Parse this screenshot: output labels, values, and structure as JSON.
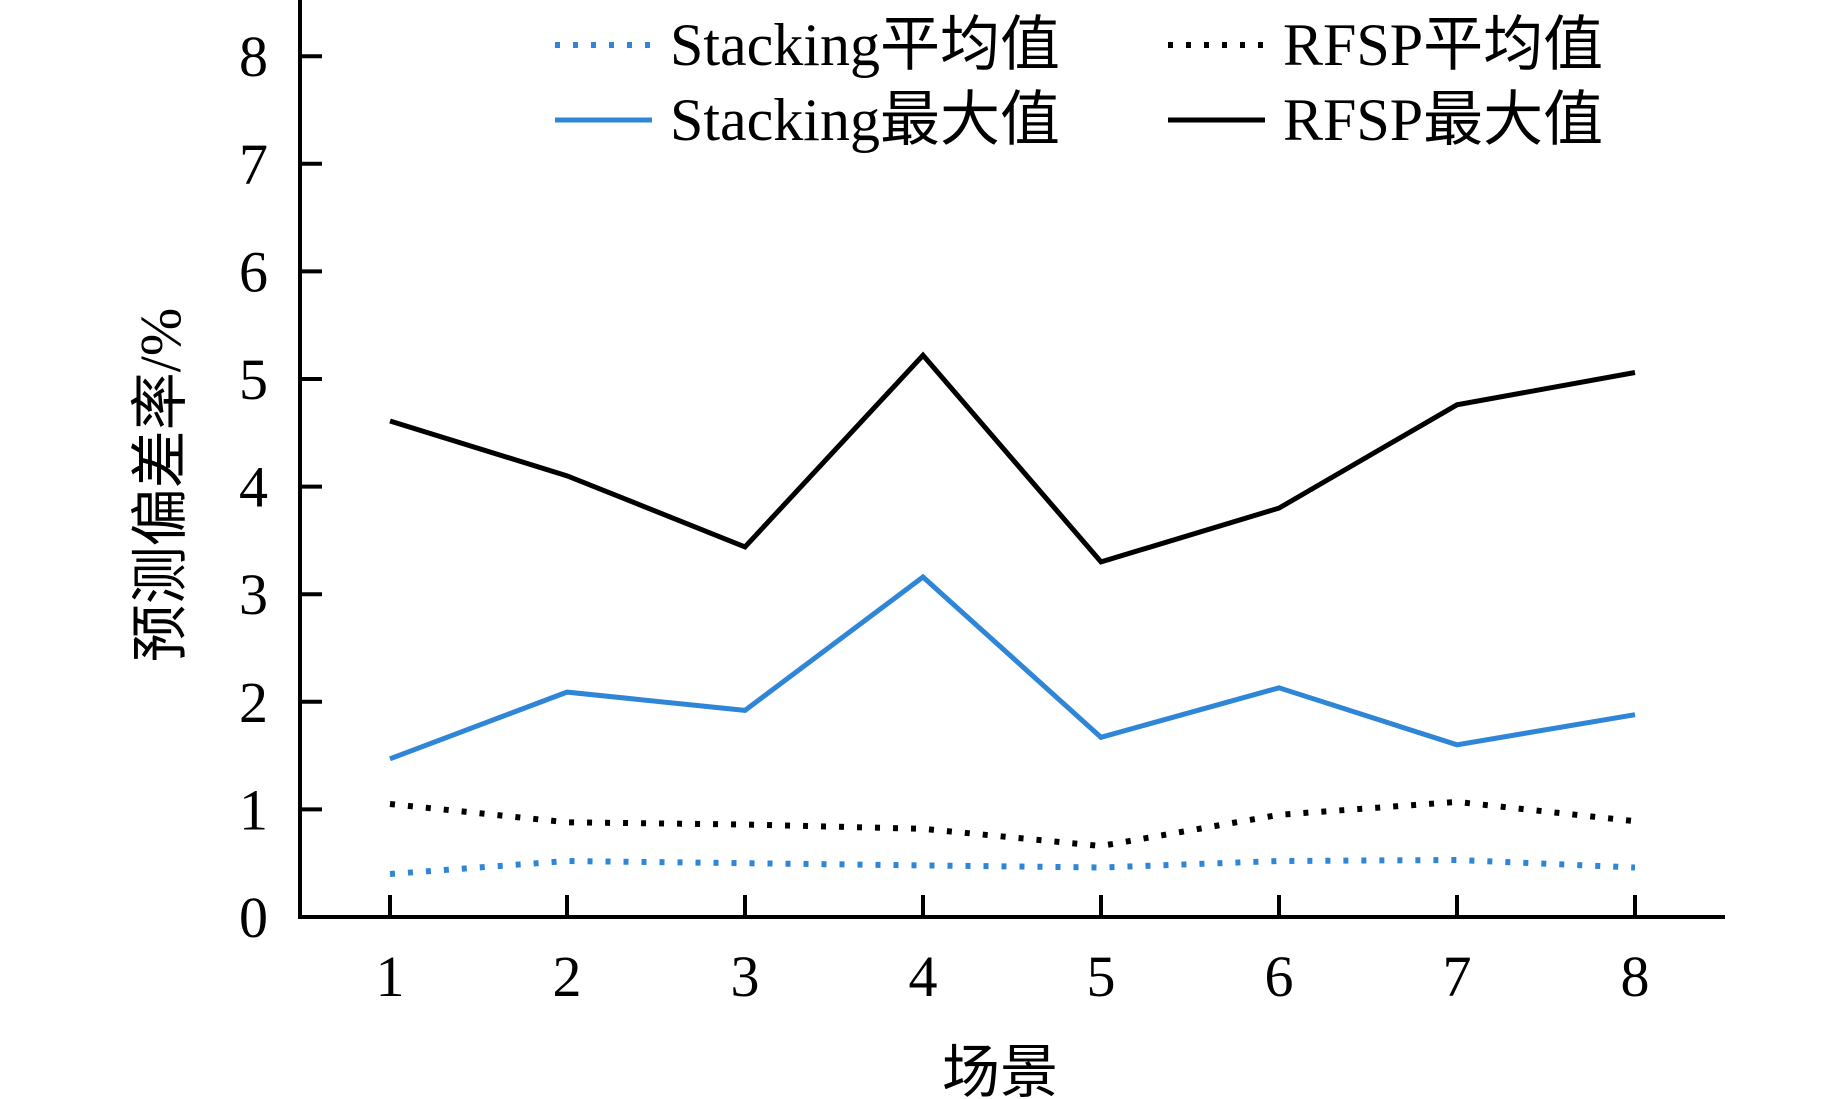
{
  "chart_data": {
    "type": "line",
    "title": "",
    "xlabel": "场景",
    "ylabel": "预测偏差率/%",
    "x": [
      "1",
      "2",
      "3",
      "4",
      "5",
      "6",
      "7",
      "8"
    ],
    "yticks": [
      "0",
      "1",
      "2",
      "3",
      "4",
      "5",
      "6",
      "7",
      "8"
    ],
    "ylim": [
      0,
      8.3
    ],
    "grid": false,
    "legend_position": "top-right",
    "series": [
      {
        "name": "Stacking平均值",
        "color": "#2f86d6",
        "style": "dotted",
        "values": [
          0.4,
          0.52,
          0.5,
          0.48,
          0.46,
          0.52,
          0.53,
          0.46
        ]
      },
      {
        "name": "RFSP平均值",
        "color": "#000000",
        "style": "dotted",
        "values": [
          1.05,
          0.88,
          0.86,
          0.82,
          0.66,
          0.95,
          1.07,
          0.89
        ]
      },
      {
        "name": "Stacking最大值",
        "color": "#2f86d6",
        "style": "solid",
        "values": [
          1.47,
          2.09,
          1.92,
          3.16,
          1.67,
          2.13,
          1.6,
          1.88
        ]
      },
      {
        "name": "RFSP最大值",
        "color": "#000000",
        "style": "solid",
        "values": [
          4.61,
          4.1,
          3.44,
          5.22,
          3.3,
          3.8,
          4.76,
          5.06
        ]
      }
    ]
  }
}
